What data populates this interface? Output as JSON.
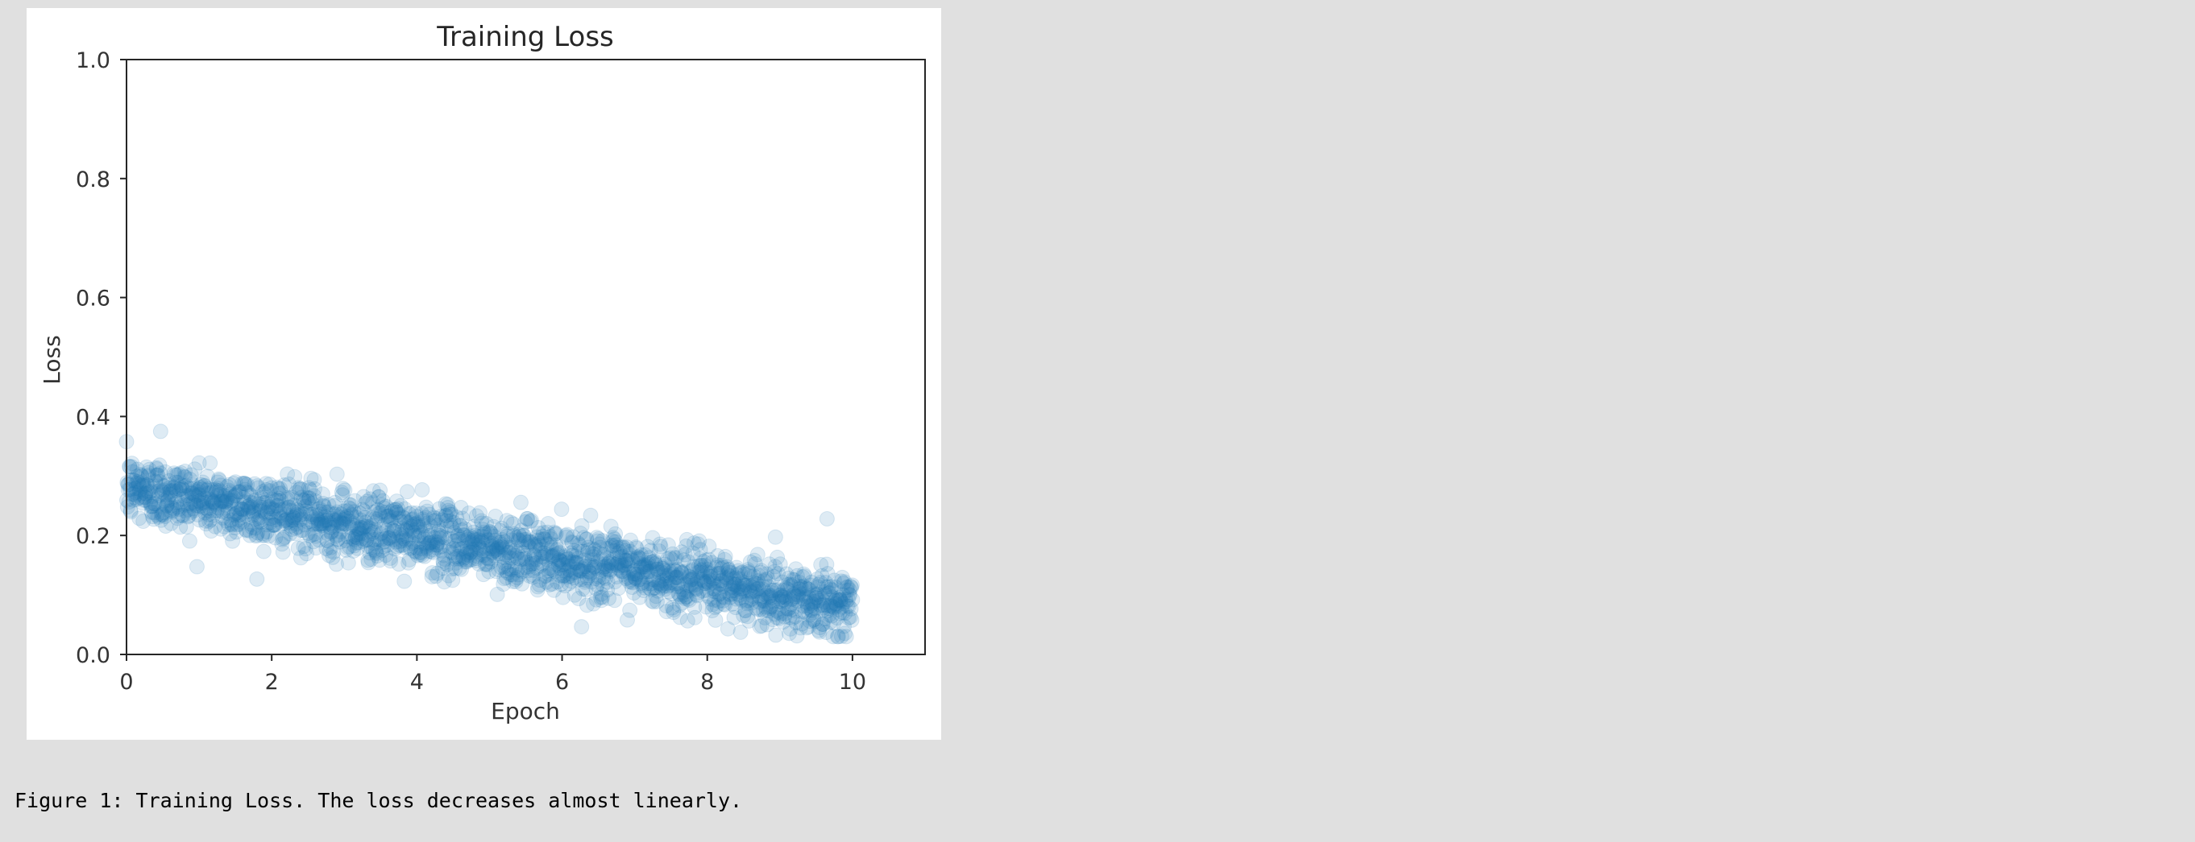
{
  "figure": {
    "caption": "Figure 1: Training Loss. The loss decreases almost linearly."
  },
  "chart_data": {
    "type": "scatter",
    "title": "Training Loss",
    "xlabel": "Epoch",
    "ylabel": "Loss",
    "xlim": [
      0,
      11
    ],
    "ylim": [
      0.0,
      1.0
    ],
    "xticks": [
      "0",
      "2",
      "4",
      "6",
      "8",
      "10"
    ],
    "xtick_values": [
      0,
      2,
      4,
      6,
      8,
      10
    ],
    "yticks": [
      "0.0",
      "0.2",
      "0.4",
      "0.6",
      "0.8",
      "1.0"
    ],
    "ytick_values": [
      0.0,
      0.2,
      0.4,
      0.6,
      0.8,
      1.0
    ],
    "grid": false,
    "legend": "none",
    "marker_color": "#1f77b4",
    "marker_alpha": 0.15,
    "series": [
      {
        "x": [
          0.0,
          0.2,
          0.4,
          0.6,
          0.8,
          1.0,
          1.2,
          1.4,
          1.6,
          1.8,
          2.0,
          2.2,
          2.4,
          2.6,
          2.8,
          3.0,
          3.2,
          3.4,
          3.6,
          3.8,
          4.0,
          4.2,
          4.4,
          4.6,
          4.8,
          5.0,
          5.2,
          5.4,
          5.6,
          5.8,
          6.0,
          6.2,
          6.4,
          6.6,
          6.8,
          7.0,
          7.2,
          7.4,
          7.6,
          7.8,
          8.0,
          8.2,
          8.4,
          8.6,
          8.8,
          9.0,
          9.2,
          9.4,
          9.6,
          9.8,
          10.0
        ],
        "y": [
          0.245,
          0.241,
          0.237,
          0.233,
          0.229,
          0.225,
          0.221,
          0.217,
          0.213,
          0.209,
          0.205,
          0.201,
          0.197,
          0.193,
          0.189,
          0.185,
          0.181,
          0.177,
          0.173,
          0.169,
          0.165,
          0.161,
          0.157,
          0.153,
          0.149,
          0.145,
          0.141,
          0.137,
          0.133,
          0.129,
          0.125,
          0.121,
          0.117,
          0.113,
          0.109,
          0.105,
          0.101,
          0.097,
          0.093,
          0.089,
          0.085,
          0.081,
          0.077,
          0.073,
          0.069,
          0.065,
          0.061,
          0.057,
          0.053,
          0.049,
          0.045
        ]
      }
    ]
  }
}
